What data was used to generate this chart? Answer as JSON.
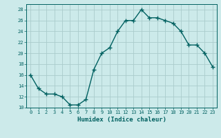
{
  "x": [
    0,
    1,
    2,
    3,
    4,
    5,
    6,
    7,
    8,
    9,
    10,
    11,
    12,
    13,
    14,
    15,
    16,
    17,
    18,
    19,
    20,
    21,
    22,
    23
  ],
  "y": [
    16,
    13.5,
    12.5,
    12.5,
    12,
    10.5,
    10.5,
    11.5,
    17,
    20,
    21,
    24,
    26,
    26,
    28,
    26.5,
    26.5,
    26,
    25.5,
    24,
    21.5,
    21.5,
    20,
    17.5
  ],
  "line_color": "#006060",
  "marker": "+",
  "marker_size": 4,
  "bg_color": "#cceaea",
  "grid_color": "#aacccc",
  "xlabel": "Humidex (Indice chaleur)",
  "xlim": [
    -0.5,
    23.5
  ],
  "ylim": [
    10,
    29
  ],
  "yticks": [
    10,
    12,
    14,
    16,
    18,
    20,
    22,
    24,
    26,
    28
  ],
  "xticks": [
    0,
    1,
    2,
    3,
    4,
    5,
    6,
    7,
    8,
    9,
    10,
    11,
    12,
    13,
    14,
    15,
    16,
    17,
    18,
    19,
    20,
    21,
    22,
    23
  ]
}
